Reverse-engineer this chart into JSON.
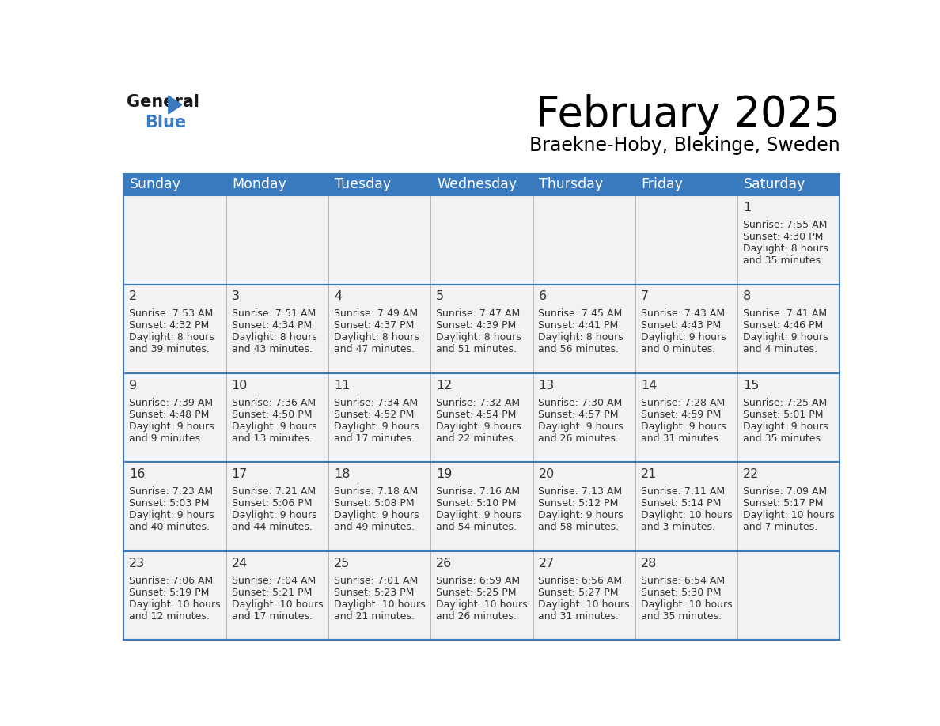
{
  "title": "February 2025",
  "subtitle": "Braekne-Hoby, Blekinge, Sweden",
  "header_color": "#3a7bbf",
  "header_text_color": "#ffffff",
  "day_names": [
    "Sunday",
    "Monday",
    "Tuesday",
    "Wednesday",
    "Thursday",
    "Friday",
    "Saturday"
  ],
  "cell_bg_odd": "#f2f2f2",
  "cell_bg_even": "#ffffff",
  "border_color": "#3a7bbf",
  "text_color": "#333333",
  "days": [
    {
      "day": 1,
      "col": 6,
      "row": 0,
      "sunrise": "7:55 AM",
      "sunset": "4:30 PM",
      "daylight_line1": "Daylight: 8 hours",
      "daylight_line2": "and 35 minutes."
    },
    {
      "day": 2,
      "col": 0,
      "row": 1,
      "sunrise": "7:53 AM",
      "sunset": "4:32 PM",
      "daylight_line1": "Daylight: 8 hours",
      "daylight_line2": "and 39 minutes."
    },
    {
      "day": 3,
      "col": 1,
      "row": 1,
      "sunrise": "7:51 AM",
      "sunset": "4:34 PM",
      "daylight_line1": "Daylight: 8 hours",
      "daylight_line2": "and 43 minutes."
    },
    {
      "day": 4,
      "col": 2,
      "row": 1,
      "sunrise": "7:49 AM",
      "sunset": "4:37 PM",
      "daylight_line1": "Daylight: 8 hours",
      "daylight_line2": "and 47 minutes."
    },
    {
      "day": 5,
      "col": 3,
      "row": 1,
      "sunrise": "7:47 AM",
      "sunset": "4:39 PM",
      "daylight_line1": "Daylight: 8 hours",
      "daylight_line2": "and 51 minutes."
    },
    {
      "day": 6,
      "col": 4,
      "row": 1,
      "sunrise": "7:45 AM",
      "sunset": "4:41 PM",
      "daylight_line1": "Daylight: 8 hours",
      "daylight_line2": "and 56 minutes."
    },
    {
      "day": 7,
      "col": 5,
      "row": 1,
      "sunrise": "7:43 AM",
      "sunset": "4:43 PM",
      "daylight_line1": "Daylight: 9 hours",
      "daylight_line2": "and 0 minutes."
    },
    {
      "day": 8,
      "col": 6,
      "row": 1,
      "sunrise": "7:41 AM",
      "sunset": "4:46 PM",
      "daylight_line1": "Daylight: 9 hours",
      "daylight_line2": "and 4 minutes."
    },
    {
      "day": 9,
      "col": 0,
      "row": 2,
      "sunrise": "7:39 AM",
      "sunset": "4:48 PM",
      "daylight_line1": "Daylight: 9 hours",
      "daylight_line2": "and 9 minutes."
    },
    {
      "day": 10,
      "col": 1,
      "row": 2,
      "sunrise": "7:36 AM",
      "sunset": "4:50 PM",
      "daylight_line1": "Daylight: 9 hours",
      "daylight_line2": "and 13 minutes."
    },
    {
      "day": 11,
      "col": 2,
      "row": 2,
      "sunrise": "7:34 AM",
      "sunset": "4:52 PM",
      "daylight_line1": "Daylight: 9 hours",
      "daylight_line2": "and 17 minutes."
    },
    {
      "day": 12,
      "col": 3,
      "row": 2,
      "sunrise": "7:32 AM",
      "sunset": "4:54 PM",
      "daylight_line1": "Daylight: 9 hours",
      "daylight_line2": "and 22 minutes."
    },
    {
      "day": 13,
      "col": 4,
      "row": 2,
      "sunrise": "7:30 AM",
      "sunset": "4:57 PM",
      "daylight_line1": "Daylight: 9 hours",
      "daylight_line2": "and 26 minutes."
    },
    {
      "day": 14,
      "col": 5,
      "row": 2,
      "sunrise": "7:28 AM",
      "sunset": "4:59 PM",
      "daylight_line1": "Daylight: 9 hours",
      "daylight_line2": "and 31 minutes."
    },
    {
      "day": 15,
      "col": 6,
      "row": 2,
      "sunrise": "7:25 AM",
      "sunset": "5:01 PM",
      "daylight_line1": "Daylight: 9 hours",
      "daylight_line2": "and 35 minutes."
    },
    {
      "day": 16,
      "col": 0,
      "row": 3,
      "sunrise": "7:23 AM",
      "sunset": "5:03 PM",
      "daylight_line1": "Daylight: 9 hours",
      "daylight_line2": "and 40 minutes."
    },
    {
      "day": 17,
      "col": 1,
      "row": 3,
      "sunrise": "7:21 AM",
      "sunset": "5:06 PM",
      "daylight_line1": "Daylight: 9 hours",
      "daylight_line2": "and 44 minutes."
    },
    {
      "day": 18,
      "col": 2,
      "row": 3,
      "sunrise": "7:18 AM",
      "sunset": "5:08 PM",
      "daylight_line1": "Daylight: 9 hours",
      "daylight_line2": "and 49 minutes."
    },
    {
      "day": 19,
      "col": 3,
      "row": 3,
      "sunrise": "7:16 AM",
      "sunset": "5:10 PM",
      "daylight_line1": "Daylight: 9 hours",
      "daylight_line2": "and 54 minutes."
    },
    {
      "day": 20,
      "col": 4,
      "row": 3,
      "sunrise": "7:13 AM",
      "sunset": "5:12 PM",
      "daylight_line1": "Daylight: 9 hours",
      "daylight_line2": "and 58 minutes."
    },
    {
      "day": 21,
      "col": 5,
      "row": 3,
      "sunrise": "7:11 AM",
      "sunset": "5:14 PM",
      "daylight_line1": "Daylight: 10 hours",
      "daylight_line2": "and 3 minutes."
    },
    {
      "day": 22,
      "col": 6,
      "row": 3,
      "sunrise": "7:09 AM",
      "sunset": "5:17 PM",
      "daylight_line1": "Daylight: 10 hours",
      "daylight_line2": "and 7 minutes."
    },
    {
      "day": 23,
      "col": 0,
      "row": 4,
      "sunrise": "7:06 AM",
      "sunset": "5:19 PM",
      "daylight_line1": "Daylight: 10 hours",
      "daylight_line2": "and 12 minutes."
    },
    {
      "day": 24,
      "col": 1,
      "row": 4,
      "sunrise": "7:04 AM",
      "sunset": "5:21 PM",
      "daylight_line1": "Daylight: 10 hours",
      "daylight_line2": "and 17 minutes."
    },
    {
      "day": 25,
      "col": 2,
      "row": 4,
      "sunrise": "7:01 AM",
      "sunset": "5:23 PM",
      "daylight_line1": "Daylight: 10 hours",
      "daylight_line2": "and 21 minutes."
    },
    {
      "day": 26,
      "col": 3,
      "row": 4,
      "sunrise": "6:59 AM",
      "sunset": "5:25 PM",
      "daylight_line1": "Daylight: 10 hours",
      "daylight_line2": "and 26 minutes."
    },
    {
      "day": 27,
      "col": 4,
      "row": 4,
      "sunrise": "6:56 AM",
      "sunset": "5:27 PM",
      "daylight_line1": "Daylight: 10 hours",
      "daylight_line2": "and 31 minutes."
    },
    {
      "day": 28,
      "col": 5,
      "row": 4,
      "sunrise": "6:54 AM",
      "sunset": "5:30 PM",
      "daylight_line1": "Daylight: 10 hours",
      "daylight_line2": "and 35 minutes."
    }
  ]
}
